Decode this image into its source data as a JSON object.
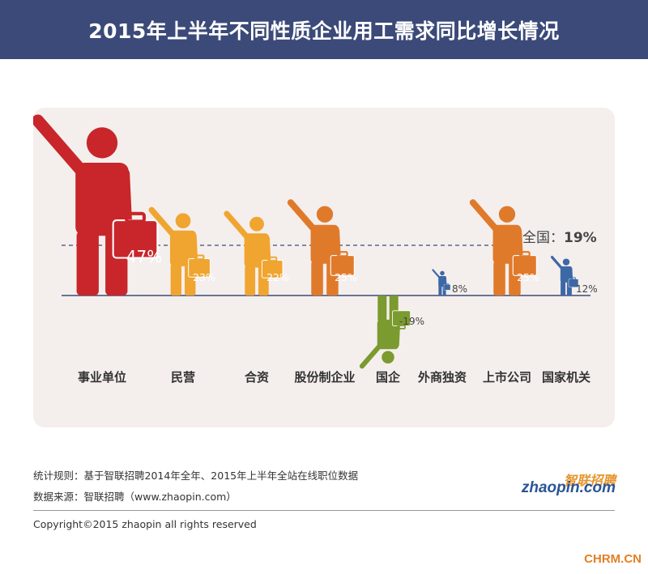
{
  "header": {
    "title": "2015年上半年不同性质企业用工需求同比增长情况"
  },
  "chart_data": {
    "type": "bar",
    "title": "2015年上半年不同性质企业用工需求同比增长情况",
    "categories": [
      "事业单位",
      "民营",
      "合资",
      "股份制企业",
      "国企",
      "外商独资",
      "上市公司",
      "国家机关"
    ],
    "values": [
      47,
      23,
      22,
      25,
      -19,
      8,
      25,
      12
    ],
    "value_labels": [
      "47%",
      "23%",
      "22%",
      "25%",
      "-19%",
      "8%",
      "25%",
      "12%"
    ],
    "colors": [
      "#c8262a",
      "#f0a531",
      "#f0a531",
      "#e07a2b",
      "#7b9a2f",
      "#3d68a6",
      "#e07a2b",
      "#3d68a6"
    ],
    "reference": {
      "label_prefix": "全国：",
      "label_value": "19%",
      "value": 19,
      "style": "dashed"
    },
    "xlabel": "",
    "ylabel": "",
    "legend": "none",
    "grid": false
  },
  "footer": {
    "stats_rule": "统计规则：基于智联招聘2014年全年、2015年上半年全站在线职位数据",
    "source": "数据来源：智联招聘（www.zhaopin.com）",
    "copyright": "Copyright©2015 zhaopin all rights reserved",
    "logo_cn": "智联招聘",
    "logo_en": "zhaopin.com",
    "watermark": "CHRM.CN"
  }
}
